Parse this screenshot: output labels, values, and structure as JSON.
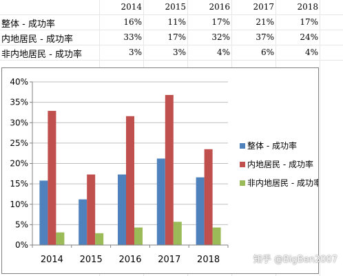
{
  "table": {
    "years": [
      "2014",
      "2015",
      "2016",
      "2017",
      "2018"
    ],
    "rows": [
      {
        "label": "整体 - 成功率",
        "values": [
          "16%",
          "11%",
          "17%",
          "21%",
          "17%"
        ]
      },
      {
        "label": "内地居民 - 成功率",
        "values": [
          "33%",
          "17%",
          "32%",
          "37%",
          "24%"
        ]
      },
      {
        "label": "非内地居民 - 成功率",
        "values": [
          "3%",
          "3%",
          "4%",
          "6%",
          "4%"
        ]
      }
    ]
  },
  "chart_data": {
    "type": "bar",
    "categories": [
      "2014",
      "2015",
      "2016",
      "2017",
      "2018"
    ],
    "series": [
      {
        "name": "整体 - 成功率",
        "color": "#4f81bd",
        "values": [
          15.8,
          11.2,
          17.3,
          21.2,
          16.6
        ]
      },
      {
        "name": "内地居民 - 成功率",
        "color": "#c0504d",
        "values": [
          32.9,
          17.3,
          31.6,
          36.8,
          23.5
        ]
      },
      {
        "name": "非内地居民 - 成功率",
        "color": "#9bbb59",
        "values": [
          3.1,
          2.9,
          4.3,
          5.7,
          4.3
        ]
      }
    ],
    "yticks": [
      "0%",
      "5%",
      "10%",
      "15%",
      "20%",
      "25%",
      "30%",
      "35%",
      "40%"
    ],
    "ylim": [
      0,
      40
    ],
    "grid": true,
    "legend_position": "right"
  },
  "watermark": "知乎 @BigBen2007"
}
